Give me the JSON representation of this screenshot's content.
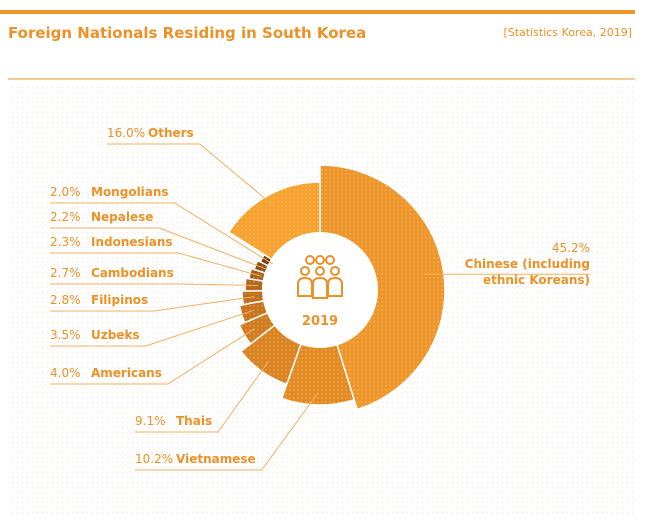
{
  "header": {
    "title": "Foreign Nationals Residing in South Korea",
    "source": "[Statistics Korea, 2019]"
  },
  "chart_data": {
    "type": "pie",
    "center_label": "2019",
    "categories": [
      "Chinese (including ethnic Koreans)",
      "Vietnamese",
      "Thais",
      "Americans",
      "Uzbeks",
      "Filipinos",
      "Cambodians",
      "Indonesians",
      "Nepalese",
      "Mongolians",
      "Others"
    ],
    "values": [
      45.2,
      10.2,
      9.1,
      4.0,
      3.5,
      2.8,
      2.7,
      2.3,
      2.2,
      2.0,
      16.0
    ],
    "value_labels": [
      "45.2%",
      "10.2%",
      "9.1%",
      "4.0%",
      "3.5%",
      "2.8%",
      "2.7%",
      "2.3%",
      "2.2%",
      "2.0%",
      "16.0%"
    ],
    "colors": [
      "#ee9629",
      "#e38b22",
      "#da8320",
      "#d07b1e",
      "#c8741d",
      "#bf6c1b",
      "#b4651a",
      "#a65d17",
      "#8c4d13",
      "#6e3c0f",
      "#f7a12e"
    ]
  }
}
